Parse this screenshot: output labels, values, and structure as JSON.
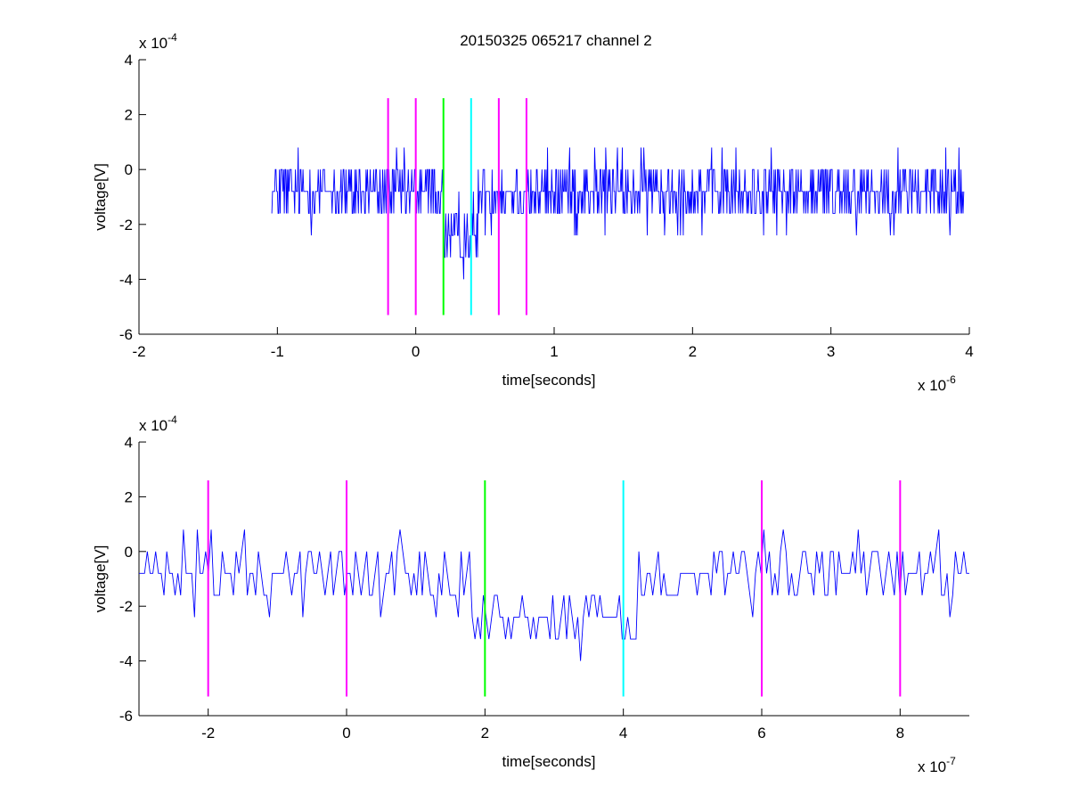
{
  "figure": {
    "title": "20150325 065217 channel 2"
  },
  "colors": {
    "signal": "#0000ff",
    "magenta": "#ff00ff",
    "green": "#00ff00",
    "cyan": "#00ffff",
    "axis": "#000000"
  },
  "chart_data": [
    {
      "type": "line",
      "title": "20150325 065217 channel 2",
      "xlabel": "time[seconds]",
      "ylabel": "voltage[V]",
      "x_exponent_label": "x 10",
      "x_exponent": "-6",
      "y_exponent_label": "x 10",
      "y_exponent": "-4",
      "xlim": [
        -2,
        4
      ],
      "ylim": [
        -6,
        4
      ],
      "xticks": [
        -2,
        -1,
        0,
        1,
        2,
        3,
        4
      ],
      "xtick_labels": [
        "-2",
        "-1",
        "0",
        "1",
        "2",
        "3",
        "4"
      ],
      "yticks": [
        -6,
        -4,
        -2,
        0,
        2,
        4
      ],
      "ytick_labels": [
        "-6",
        "-4",
        "-2",
        "0",
        "2",
        "4"
      ],
      "grid": false,
      "signal": {
        "x_start": -1.04,
        "x_end": 3.96,
        "n_points": 1000,
        "baseline": -0.6,
        "step": 0.8,
        "levels": [
          -4.8,
          2.4
        ],
        "dip_start": 0.2,
        "dip_end": 0.45,
        "dip_level": -2.8
      },
      "markers": [
        {
          "x": -0.2,
          "y_from": -5.3,
          "y_to": 2.6,
          "color": "magenta"
        },
        {
          "x": 0.0,
          "y_from": -5.3,
          "y_to": 2.6,
          "color": "magenta"
        },
        {
          "x": 0.2,
          "y_from": -5.3,
          "y_to": 2.6,
          "color": "green"
        },
        {
          "x": 0.4,
          "y_from": -5.3,
          "y_to": 2.6,
          "color": "cyan"
        },
        {
          "x": 0.6,
          "y_from": -5.3,
          "y_to": 2.6,
          "color": "magenta"
        },
        {
          "x": 0.8,
          "y_from": -5.3,
          "y_to": 2.6,
          "color": "magenta"
        }
      ]
    },
    {
      "type": "line",
      "title": "",
      "xlabel": "time[seconds]",
      "ylabel": "voltage[V]",
      "x_exponent_label": "x 10",
      "x_exponent": "-7",
      "y_exponent_label": "x 10",
      "y_exponent": "-4",
      "xlim": [
        -3,
        9
      ],
      "ylim": [
        -6,
        4
      ],
      "xticks": [
        -2,
        0,
        2,
        4,
        6,
        8
      ],
      "xtick_labels": [
        "-2",
        "0",
        "2",
        "4",
        "6",
        "8"
      ],
      "yticks": [
        -6,
        -4,
        -2,
        0,
        2,
        4
      ],
      "ytick_labels": [
        "-6",
        "-4",
        "-2",
        "0",
        "2",
        "4"
      ],
      "grid": false,
      "signal": {
        "x_start": -3.0,
        "x_end": 9.0,
        "n_points": 300,
        "baseline": -0.6,
        "step": 0.8,
        "levels": [
          -4.8,
          2.4
        ],
        "dip_start": 1.8,
        "dip_end": 4.2,
        "dip_level": -2.8
      },
      "markers": [
        {
          "x": -2,
          "y_from": -5.3,
          "y_to": 2.6,
          "color": "magenta"
        },
        {
          "x": 0,
          "y_from": -5.3,
          "y_to": 2.6,
          "color": "magenta"
        },
        {
          "x": 2,
          "y_from": -5.3,
          "y_to": 2.6,
          "color": "green"
        },
        {
          "x": 4,
          "y_from": -5.3,
          "y_to": 2.6,
          "color": "cyan"
        },
        {
          "x": 6,
          "y_from": -5.3,
          "y_to": 2.6,
          "color": "magenta"
        },
        {
          "x": 8,
          "y_from": -5.3,
          "y_to": 2.6,
          "color": "magenta"
        }
      ]
    }
  ]
}
